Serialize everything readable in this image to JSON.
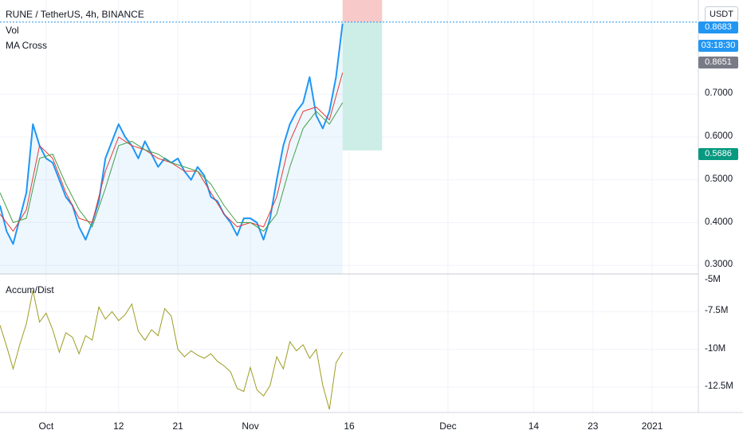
{
  "header": {
    "symbol_title": "RUNE / TetherUS, 4h, BINANCE",
    "indicator_vol": "Vol",
    "indicator_ma": "MA Cross",
    "indicator_ad": "Accum/Dist",
    "currency": "USDT"
  },
  "price_labels": {
    "target": "0.8683",
    "countdown": "03:18:30",
    "last": "0.8651",
    "stop": "0.5686"
  },
  "colors": {
    "price_line": "#2196f3",
    "ma_fast": "#e53935",
    "ma_slow": "#43a047",
    "ad_line": "#9e9d24",
    "target_zone": "#f7c0c0",
    "stop_zone": "#c4ebe2",
    "stop_label": "#089981",
    "last_label": "#787b86"
  },
  "chart_data": [
    {
      "type": "line",
      "title": "RUNE / TetherUS, 4h, BINANCE",
      "ylim": [
        0.28,
        0.92
      ],
      "y_ticks": [
        "0.7000",
        "0.6000",
        "0.5000",
        "0.4000",
        "0.3000"
      ],
      "y_tick_values": [
        0.7,
        0.6,
        0.5,
        0.4,
        0.3
      ],
      "x_ticks": [
        "Oct",
        "12",
        "21",
        "Nov",
        "16",
        "Dec",
        "14",
        "23",
        "2021"
      ],
      "x_tick_dates": [
        "2020-10-01",
        "2020-10-12",
        "2020-10-21",
        "2020-11-01",
        "2020-11-16",
        "2020-12-01",
        "2020-12-14",
        "2020-12-23",
        "2021-01-01"
      ],
      "xlim": [
        "2020-09-24",
        "2021-01-08"
      ],
      "series": [
        {
          "style": "price",
          "x": [
            "2020-09-24",
            "2020-09-25",
            "2020-09-26",
            "2020-09-27",
            "2020-09-28",
            "2020-09-29",
            "2020-09-30",
            "2020-10-01",
            "2020-10-02",
            "2020-10-03",
            "2020-10-04",
            "2020-10-05",
            "2020-10-06",
            "2020-10-07",
            "2020-10-08",
            "2020-10-09",
            "2020-10-10",
            "2020-10-11",
            "2020-10-12",
            "2020-10-13",
            "2020-10-14",
            "2020-10-15",
            "2020-10-16",
            "2020-10-17",
            "2020-10-18",
            "2020-10-19",
            "2020-10-20",
            "2020-10-21",
            "2020-10-22",
            "2020-10-23",
            "2020-10-24",
            "2020-10-25",
            "2020-10-26",
            "2020-10-27",
            "2020-10-28",
            "2020-10-29",
            "2020-10-30",
            "2020-10-31",
            "2020-11-01",
            "2020-11-02",
            "2020-11-03",
            "2020-11-04",
            "2020-11-05",
            "2020-11-06",
            "2020-11-07",
            "2020-11-08",
            "2020-11-09",
            "2020-11-10",
            "2020-11-11",
            "2020-11-12",
            "2020-11-13",
            "2020-11-14",
            "2020-11-15"
          ],
          "values": [
            0.44,
            0.38,
            0.35,
            0.41,
            0.47,
            0.63,
            0.58,
            0.55,
            0.54,
            0.5,
            0.46,
            0.44,
            0.39,
            0.36,
            0.4,
            0.45,
            0.55,
            0.59,
            0.63,
            0.6,
            0.58,
            0.55,
            0.59,
            0.56,
            0.53,
            0.55,
            0.54,
            0.55,
            0.52,
            0.5,
            0.53,
            0.51,
            0.46,
            0.45,
            0.42,
            0.4,
            0.37,
            0.41,
            0.41,
            0.4,
            0.36,
            0.41,
            0.5,
            0.58,
            0.63,
            0.66,
            0.68,
            0.74,
            0.65,
            0.62,
            0.66,
            0.74,
            0.865
          ]
        },
        {
          "style": "ma_fast",
          "x": [
            "2020-09-24",
            "2020-09-26",
            "2020-09-28",
            "2020-09-30",
            "2020-10-02",
            "2020-10-04",
            "2020-10-06",
            "2020-10-08",
            "2020-10-10",
            "2020-10-12",
            "2020-10-14",
            "2020-10-16",
            "2020-10-18",
            "2020-10-20",
            "2020-10-22",
            "2020-10-24",
            "2020-10-26",
            "2020-10-28",
            "2020-10-30",
            "2020-11-01",
            "2020-11-03",
            "2020-11-05",
            "2020-11-07",
            "2020-11-09",
            "2020-11-11",
            "2020-11-13",
            "2020-11-15"
          ],
          "values": [
            0.42,
            0.38,
            0.43,
            0.58,
            0.55,
            0.47,
            0.41,
            0.4,
            0.52,
            0.6,
            0.58,
            0.57,
            0.55,
            0.54,
            0.52,
            0.52,
            0.47,
            0.42,
            0.39,
            0.4,
            0.39,
            0.46,
            0.59,
            0.66,
            0.67,
            0.64,
            0.75
          ]
        },
        {
          "style": "ma_slow",
          "x": [
            "2020-09-24",
            "2020-09-26",
            "2020-09-28",
            "2020-09-30",
            "2020-10-02",
            "2020-10-04",
            "2020-10-06",
            "2020-10-08",
            "2020-10-10",
            "2020-10-12",
            "2020-10-14",
            "2020-10-16",
            "2020-10-18",
            "2020-10-20",
            "2020-10-22",
            "2020-10-24",
            "2020-10-26",
            "2020-10-28",
            "2020-10-30",
            "2020-11-01",
            "2020-11-03",
            "2020-11-05",
            "2020-11-07",
            "2020-11-09",
            "2020-11-11",
            "2020-11-13",
            "2020-11-15"
          ],
          "values": [
            0.47,
            0.4,
            0.41,
            0.55,
            0.56,
            0.49,
            0.43,
            0.39,
            0.48,
            0.58,
            0.59,
            0.57,
            0.56,
            0.54,
            0.53,
            0.52,
            0.49,
            0.44,
            0.4,
            0.4,
            0.38,
            0.42,
            0.53,
            0.62,
            0.66,
            0.63,
            0.68
          ]
        }
      ],
      "position_tool": {
        "start": "2020-11-15",
        "end": "2020-11-21",
        "target": 0.8683,
        "stop": 0.5686,
        "top": 0.99
      },
      "grid": true
    },
    {
      "type": "line",
      "title": "Accum/Dist",
      "ylim": [
        -14.2,
        -5.0
      ],
      "y_ticks": [
        "-5M",
        "-7.5M",
        "-10M",
        "-12.5M"
      ],
      "y_tick_values": [
        -5,
        -7.5,
        -10,
        -12.5
      ],
      "series": [
        {
          "style": "ad",
          "x": [
            "2020-09-24",
            "2020-09-25",
            "2020-09-26",
            "2020-09-27",
            "2020-09-28",
            "2020-09-29",
            "2020-09-30",
            "2020-10-01",
            "2020-10-02",
            "2020-10-03",
            "2020-10-04",
            "2020-10-05",
            "2020-10-06",
            "2020-10-07",
            "2020-10-08",
            "2020-10-09",
            "2020-10-10",
            "2020-10-11",
            "2020-10-12",
            "2020-10-13",
            "2020-10-14",
            "2020-10-15",
            "2020-10-16",
            "2020-10-17",
            "2020-10-18",
            "2020-10-19",
            "2020-10-20",
            "2020-10-21",
            "2020-10-22",
            "2020-10-23",
            "2020-10-24",
            "2020-10-25",
            "2020-10-26",
            "2020-10-27",
            "2020-10-28",
            "2020-10-29",
            "2020-10-30",
            "2020-10-31",
            "2020-11-01",
            "2020-11-02",
            "2020-11-03",
            "2020-11-04",
            "2020-11-05",
            "2020-11-06",
            "2020-11-07",
            "2020-11-08",
            "2020-11-09",
            "2020-11-10",
            "2020-11-11",
            "2020-11-12",
            "2020-11-13",
            "2020-11-14",
            "2020-11-15"
          ],
          "values": [
            -8.4,
            -9.8,
            -11.3,
            -9.7,
            -8.3,
            -6.1,
            -8.2,
            -7.6,
            -8.7,
            -10.2,
            -8.9,
            -9.2,
            -10.3,
            -9.1,
            -9.4,
            -7.2,
            -8.0,
            -7.5,
            -8.1,
            -7.7,
            -7.0,
            -8.8,
            -9.4,
            -8.7,
            -9.1,
            -7.3,
            -7.8,
            -10.0,
            -10.5,
            -10.1,
            -10.4,
            -10.6,
            -10.3,
            -10.8,
            -11.1,
            -11.5,
            -12.6,
            -12.8,
            -11.2,
            -12.7,
            -13.1,
            -12.4,
            -10.5,
            -11.3,
            -9.5,
            -10.1,
            -9.7,
            -10.6,
            -10.0,
            -12.4,
            -14.0,
            -10.9,
            -10.2
          ]
        }
      ],
      "grid": true
    }
  ]
}
